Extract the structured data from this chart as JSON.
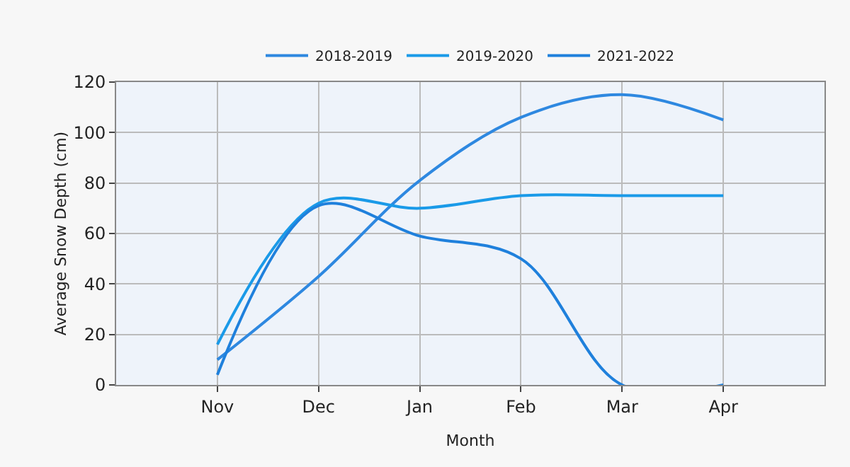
{
  "chart_data": {
    "type": "line",
    "xlabel": "Month",
    "ylabel": "Average Snow Depth (cm)",
    "categories": [
      "Nov",
      "Dec",
      "Jan",
      "Feb",
      "Mar",
      "Apr"
    ],
    "series": [
      {
        "name": "2018-2019",
        "color": "#2e88e0",
        "values": [
          10,
          43,
          81,
          106,
          115,
          105
        ]
      },
      {
        "name": "2019-2020",
        "color": "#1a9ae8",
        "values": [
          16,
          72,
          70,
          75,
          75,
          75
        ]
      },
      {
        "name": "2021-2022",
        "color": "#1f80dc",
        "values": [
          4,
          71,
          59,
          50,
          0,
          0
        ]
      }
    ],
    "ylim": [
      0,
      120
    ],
    "yticks": [
      0,
      20,
      40,
      60,
      80,
      100,
      120
    ],
    "grid": true,
    "legend": "top",
    "marker": "none",
    "line_style": "solid"
  }
}
